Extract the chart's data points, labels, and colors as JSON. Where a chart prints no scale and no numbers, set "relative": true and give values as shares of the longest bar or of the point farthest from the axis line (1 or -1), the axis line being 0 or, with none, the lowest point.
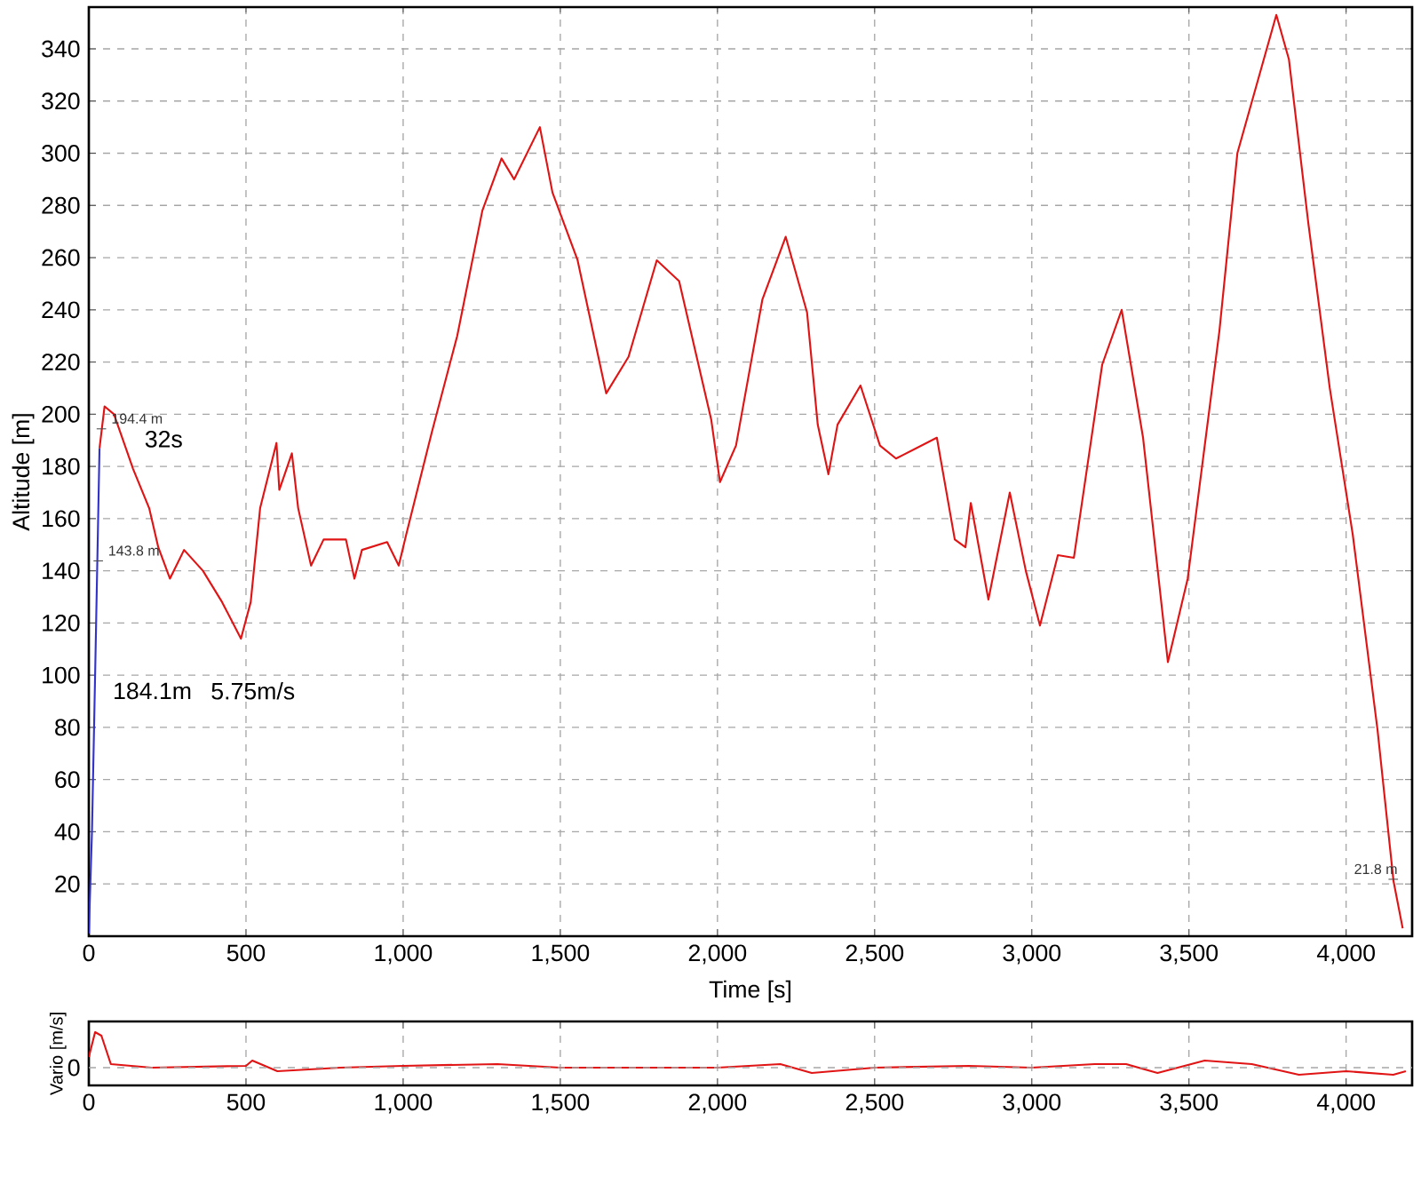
{
  "chart_data": [
    {
      "type": "line",
      "xlabel": "Time [s]",
      "ylabel": "Altitude [m]",
      "xlim": [
        0,
        4210
      ],
      "ylim": [
        0,
        356
      ],
      "xticks": [
        0,
        500,
        {
          "value": 1000,
          "label": "1,000"
        },
        {
          "value": 1500,
          "label": "1,500"
        },
        {
          "value": 2000,
          "label": "2,000"
        },
        {
          "value": 2500,
          "label": "2,500"
        },
        {
          "value": 3000,
          "label": "3,000"
        },
        {
          "value": 3500,
          "label": "3,500"
        },
        {
          "value": 4000,
          "label": "4,000"
        }
      ],
      "yticks": [
        20,
        40,
        60,
        80,
        100,
        120,
        140,
        160,
        180,
        200,
        220,
        240,
        260,
        280,
        300,
        320,
        340
      ],
      "grid": true,
      "series": [
        {
          "color": "#3333cc",
          "x": [
            0,
            10,
            20,
            34
          ],
          "values": [
            1,
            40,
            100,
            187
          ]
        },
        {
          "color": "#e01414",
          "x": [
            34,
            50,
            80,
            141,
            192,
            221,
            258,
            303,
            363,
            424,
            484,
            515,
            545,
            597,
            606,
            646,
            666,
            707,
            747,
            818,
            845,
            869,
            949,
            986,
            1010,
            1091,
            1172,
            1252,
            1313,
            1353,
            1435,
            1475,
            1555,
            1646,
            1717,
            1807,
            1878,
            1980,
            2008,
            2059,
            2143,
            2217,
            2285,
            2319,
            2353,
            2382,
            2455,
            2517,
            2568,
            2698,
            2755,
            2789,
            2806,
            2862,
            2930,
            2981,
            3026,
            3083,
            3134,
            3224,
            3286,
            3354,
            3433,
            3496,
            3597,
            3654,
            3778,
            3818,
            3880,
            3948,
            4021,
            4100,
            4151,
            4180
          ],
          "values": [
            187,
            203,
            200,
            179,
            164,
            149,
            137,
            148,
            140,
            128,
            114,
            128,
            164,
            189,
            171,
            185,
            164,
            142,
            152,
            152,
            137,
            148,
            151,
            142,
            154,
            193,
            230,
            278,
            298,
            290,
            310,
            285,
            259,
            208,
            222,
            259,
            251,
            198,
            174,
            188,
            244,
            268,
            239,
            196,
            177,
            196,
            211,
            188,
            183,
            191,
            152,
            149,
            166,
            129,
            170,
            140,
            119,
            146,
            145,
            219,
            240,
            191,
            105,
            137,
            232,
            300,
            353,
            336,
            273,
            210,
            154,
            79,
            21,
            3
          ]
        }
      ],
      "annotations": [
        "32s",
        "184.1m",
        "5.75m/s",
        {
          "text": "194.4 m",
          "x": 40,
          "y": 194.4
        },
        {
          "text": "143.8 m",
          "x": 30,
          "y": 143.8
        },
        {
          "text": "21.8 m",
          "x": 4150,
          "y": 21.8
        }
      ]
    },
    {
      "type": "line",
      "ylabel": "Vario [m/s]",
      "relative": true,
      "xlim": [
        0,
        4210
      ],
      "xticks": [
        0,
        500,
        {
          "value": 1000,
          "label": "1,000"
        },
        {
          "value": 1500,
          "label": "1,500"
        },
        {
          "value": 2000,
          "label": "2,000"
        },
        {
          "value": 2500,
          "label": "2,500"
        },
        {
          "value": 3000,
          "label": "3,000"
        },
        {
          "value": 3500,
          "label": "3,500"
        },
        {
          "value": 4000,
          "label": "4,000"
        }
      ],
      "grid": "x",
      "ref_lines": [
        {
          "axis": "y",
          "value": 0,
          "label": "0"
        }
      ],
      "series": [
        {
          "color": "#e01414",
          "x": [
            0,
            20,
            40,
            70,
            200,
            500,
            520,
            600,
            800,
            1000,
            1300,
            1500,
            1700,
            2000,
            2200,
            2300,
            2500,
            2800,
            3000,
            3200,
            3300,
            3400,
            3550,
            3700,
            3850,
            4000,
            4150,
            4190
          ],
          "values": [
            0.3,
            1,
            0.9,
            0.1,
            0,
            0.05,
            0.2,
            -0.1,
            0,
            0.05,
            0.1,
            0,
            0,
            0,
            0.1,
            -0.15,
            0,
            0.05,
            0,
            0.1,
            0.1,
            -0.15,
            0.2,
            0.1,
            -0.2,
            -0.1,
            -0.2,
            -0.1
          ]
        }
      ]
    }
  ]
}
